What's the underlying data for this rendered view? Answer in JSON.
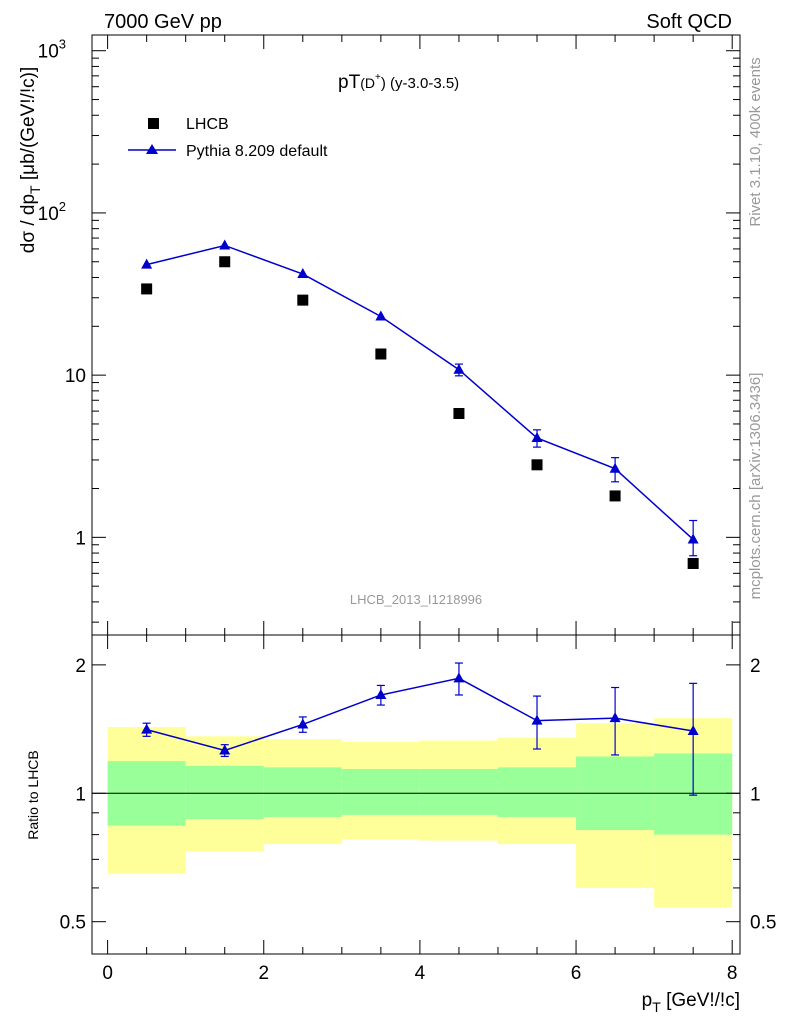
{
  "header": {
    "energy_label": "7000 GeV pp",
    "process_label": "Soft QCD"
  },
  "side_labels": {
    "rivet": "Rivet 3.1.10,  400k events",
    "source": "mcplots.cern.ch [arXiv:1306.3436]"
  },
  "colors": {
    "mc": "#0000cc",
    "data": "#000000",
    "band_inner": "#99ff99",
    "band_outer": "#ffff99"
  },
  "chart_data": [
    {
      "type": "scatter",
      "title_main": "pT",
      "title_sub": "(D",
      "title_sup": "+",
      "title_tail": ") (y-3.0-3.5)",
      "analysis_label": "LHCB_2013_I1218996",
      "ylabel_main": "dσ / dp",
      "ylabel_sub": "T",
      "ylabel_tail": " [μb/(GeV!/!c)]",
      "yscale": "log",
      "ylim": [
        0.25,
        1250
      ],
      "y_ticks": [
        {
          "value": 1,
          "label": "1"
        },
        {
          "value": 10,
          "label": "10"
        },
        {
          "value": 100,
          "label": "10",
          "sup": "2"
        },
        {
          "value": 1000,
          "label": "10",
          "sup": "3"
        }
      ],
      "legend_position": "top-left",
      "x": [
        0.5,
        1.5,
        2.5,
        3.5,
        4.5,
        5.5,
        6.5,
        7.5
      ],
      "series": [
        {
          "name": "LHCB",
          "marker": "square",
          "values": [
            34,
            50,
            29,
            13.5,
            5.8,
            2.8,
            1.8,
            0.69
          ]
        },
        {
          "name": "Pythia 8.209 default",
          "marker": "triangle-line",
          "values": [
            48,
            63,
            42,
            23,
            10.8,
            4.1,
            2.65,
            0.97
          ],
          "err_low": [
            1.5,
            2,
            1.5,
            1,
            0.9,
            0.5,
            0.45,
            0.2
          ],
          "err_high": [
            1.5,
            2,
            1.5,
            1,
            0.9,
            0.5,
            0.45,
            0.3
          ]
        }
      ]
    },
    {
      "type": "scatter",
      "ylabel": "Ratio to LHCB",
      "yscale": "log",
      "ylim": [
        0.42,
        2.35
      ],
      "y_ticks": [
        {
          "value": 0.5,
          "label": "0.5"
        },
        {
          "value": 1,
          "label": "1"
        },
        {
          "value": 2,
          "label": "2"
        }
      ],
      "xlabel_main": "p",
      "xlabel_sub": "T",
      "xlabel_tail": " [GeV!/!c]",
      "xlim": [
        -0.2,
        8.1
      ],
      "x_ticks": [
        {
          "value": 0,
          "label": "0"
        },
        {
          "value": 2,
          "label": "2"
        },
        {
          "value": 4,
          "label": "4"
        },
        {
          "value": 6,
          "label": "6"
        },
        {
          "value": 8,
          "label": "8"
        }
      ],
      "bin_edges": [
        0,
        1,
        2,
        3,
        4,
        5,
        6,
        7,
        8
      ],
      "band_inner_low": [
        0.84,
        0.87,
        0.88,
        0.89,
        0.89,
        0.88,
        0.82,
        0.8
      ],
      "band_inner_high": [
        1.19,
        1.16,
        1.15,
        1.14,
        1.14,
        1.15,
        1.22,
        1.24
      ],
      "band_outer_low": [
        0.65,
        0.73,
        0.76,
        0.78,
        0.775,
        0.76,
        0.6,
        0.54
      ],
      "band_outer_high": [
        1.43,
        1.36,
        1.34,
        1.32,
        1.33,
        1.35,
        1.46,
        1.5
      ],
      "x": [
        0.5,
        1.5,
        2.5,
        3.5,
        4.5,
        5.5,
        6.5,
        7.5
      ],
      "series": [
        {
          "name": "Pythia 8.209 default",
          "values": [
            1.41,
            1.26,
            1.45,
            1.7,
            1.86,
            1.48,
            1.5,
            1.4
          ],
          "err_low": [
            0.05,
            0.04,
            0.06,
            0.09,
            0.16,
            0.21,
            0.27,
            0.41
          ],
          "err_high": [
            0.05,
            0.04,
            0.06,
            0.09,
            0.16,
            0.21,
            0.27,
            0.41
          ]
        }
      ]
    }
  ]
}
